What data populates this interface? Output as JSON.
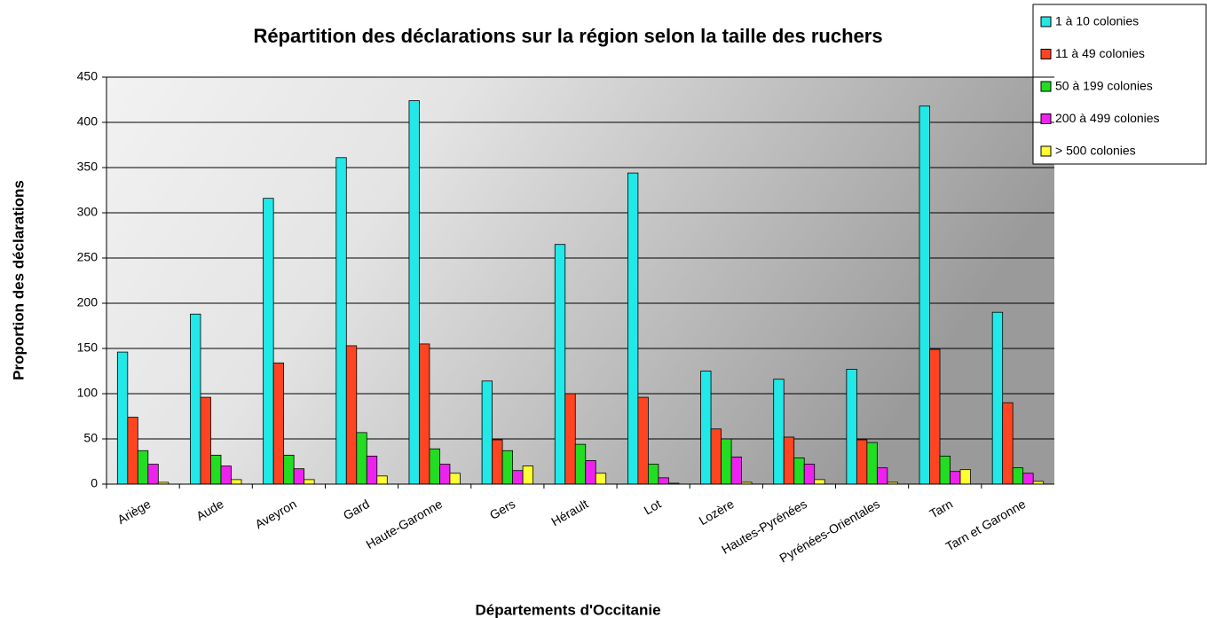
{
  "chart_data": {
    "type": "bar",
    "title": "Répartition des déclarations sur la région selon la taille des ruchers",
    "x_label": "Départements d'Occitanie",
    "y_label": "Proportion des déclarations",
    "categories": [
      "Ariège",
      "Aude",
      "Aveyron",
      "Gard",
      "Haute-Garonne",
      "Gers",
      "Hérault",
      "Lot",
      "Lozère",
      "Hautes-Pyrénées",
      "Pyrénées-Orientales",
      "Tarn",
      "Tarn et Garonne"
    ],
    "series": [
      {
        "name": "1 à 10 colonies",
        "color": "#22e8e8",
        "values": [
          146,
          188,
          316,
          361,
          424,
          114,
          265,
          344,
          125,
          116,
          127,
          418,
          190
        ]
      },
      {
        "name": "11 à 49 colonies",
        "color": "#ff4422",
        "values": [
          74,
          96,
          134,
          153,
          155,
          49,
          100,
          96,
          61,
          52,
          49,
          149,
          90
        ]
      },
      {
        "name": "50 à 199 colonies",
        "color": "#22dd22",
        "values": [
          37,
          32,
          32,
          57,
          39,
          37,
          44,
          22,
          50,
          29,
          46,
          31,
          18
        ]
      },
      {
        "name": "200 à 499 colonies",
        "color": "#ee22ee",
        "values": [
          22,
          20,
          17,
          31,
          22,
          15,
          26,
          7,
          30,
          22,
          18,
          14,
          12
        ]
      },
      {
        "name": "> 500 colonies",
        "color": "#ffff33",
        "values": [
          2,
          5,
          5,
          9,
          12,
          20,
          12,
          1,
          2,
          5,
          2,
          16,
          3
        ]
      }
    ],
    "ylim": [
      0,
      450
    ],
    "yticks": [
      0,
      50,
      100,
      150,
      200,
      250,
      300,
      350,
      400,
      450
    ],
    "grid": true,
    "legend": "top-right"
  }
}
